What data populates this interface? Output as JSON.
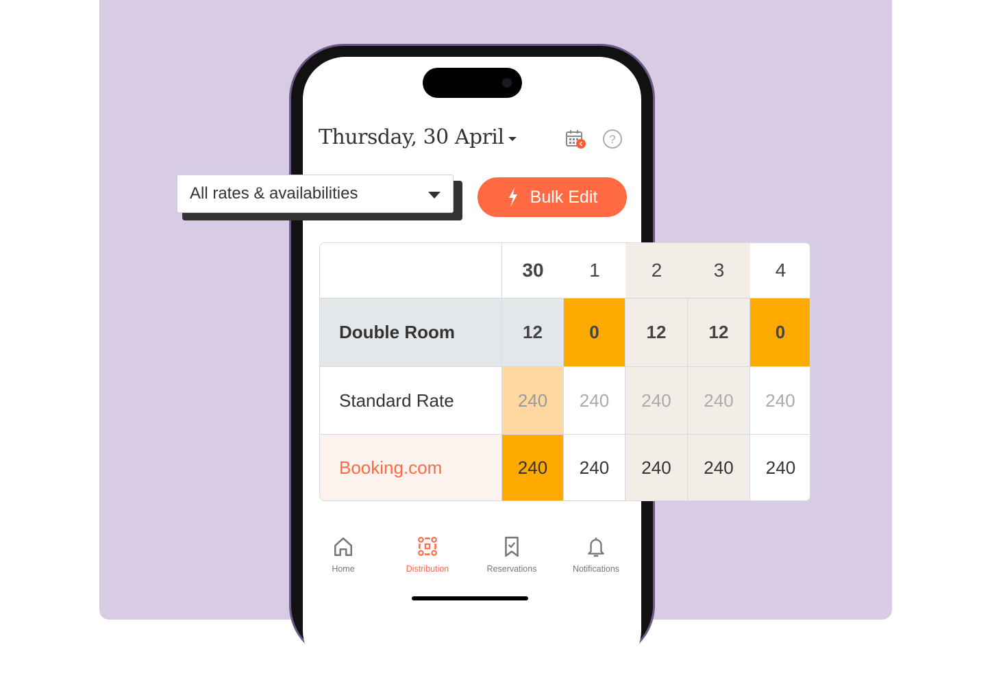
{
  "header": {
    "date_title": "Thursday, 30 April"
  },
  "filter": {
    "selected": "All rates & availabilities"
  },
  "bulk_edit": {
    "label": "Bulk Edit"
  },
  "grid": {
    "days": [
      "30",
      "1",
      "2",
      "3",
      "4"
    ],
    "selected_day": "30",
    "rows": [
      {
        "label": "Double Room",
        "values": [
          "12",
          "0",
          "12",
          "12",
          "0"
        ]
      },
      {
        "label": "Standard Rate",
        "values": [
          "240",
          "240",
          "240",
          "240",
          "240"
        ]
      },
      {
        "label": "Booking.com",
        "values": [
          "240",
          "240",
          "240",
          "240",
          "240"
        ]
      }
    ]
  },
  "nav": {
    "items": [
      {
        "label": "Home",
        "icon": "home-icon"
      },
      {
        "label": "Distribution",
        "icon": "distribution-icon",
        "active": true
      },
      {
        "label": "Reservations",
        "icon": "bookmark-check-icon"
      },
      {
        "label": "Notifications",
        "icon": "bell-icon"
      }
    ]
  },
  "colors": {
    "accent": "#ff6a43",
    "unavailable": "#ffaa00",
    "weekend": "#f3ede8",
    "panel": "#d8cce5"
  }
}
